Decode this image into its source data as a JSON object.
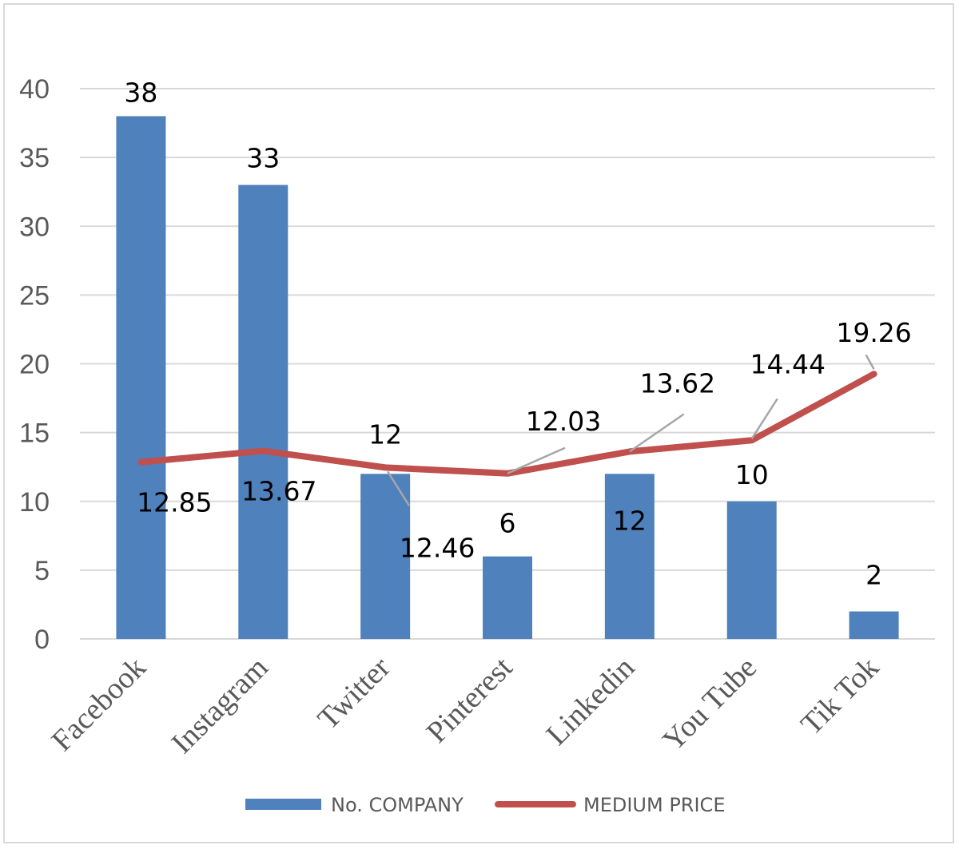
{
  "chart_data": {
    "type": "bar",
    "categories": [
      "Facebook",
      "Instagram",
      "Twitter",
      "Pinterest",
      "Linkedin",
      "You Tube",
      "Tik Tok"
    ],
    "series": [
      {
        "name": "No. COMPANY",
        "type": "bar",
        "color": "#4f81bd",
        "values": [
          38,
          33,
          12,
          6,
          12,
          10,
          2
        ]
      },
      {
        "name": "MEDIUM PRICE",
        "type": "line",
        "color": "#c0504d",
        "values": [
          12.85,
          13.67,
          12.46,
          12.03,
          13.62,
          14.44,
          19.26
        ]
      }
    ],
    "bar_labels": [
      "38",
      "33",
      "12",
      "6",
      "12",
      "10",
      "2"
    ],
    "line_labels": [
      "12.85",
      "13.67",
      "12.46",
      "12.03",
      "13.62",
      "14.44",
      "19.26"
    ],
    "ylim": [
      0,
      40
    ],
    "yticks": [
      "0",
      "5",
      "10",
      "15",
      "20",
      "25",
      "30",
      "35",
      "40"
    ],
    "grid": true,
    "legend_position": "bottom"
  }
}
